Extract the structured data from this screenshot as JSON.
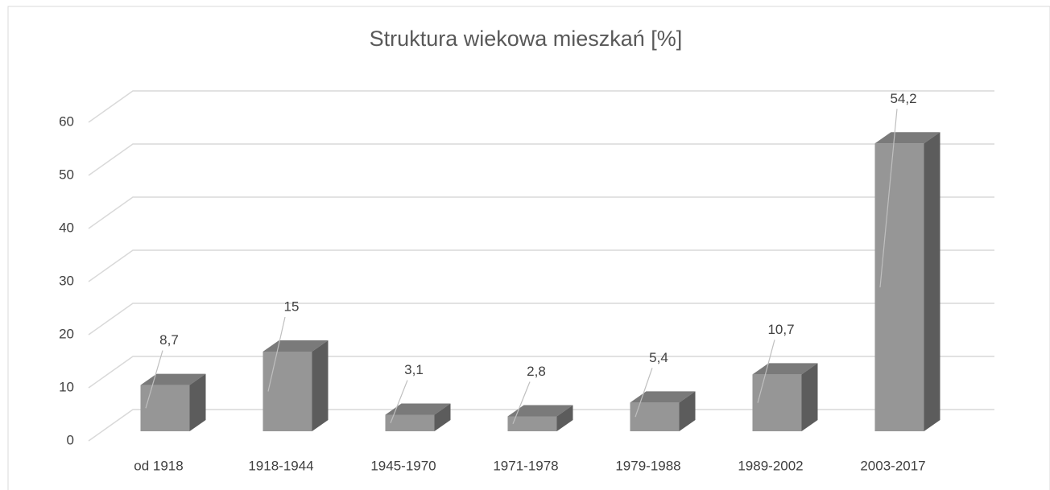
{
  "chart_data": {
    "type": "bar3d",
    "title": "Struktura wiekowa mieszkań [%]",
    "categories": [
      "od 1918",
      "1918-1944",
      "1945-1970",
      "1971-1978",
      "1979-1988",
      "1989-2002",
      "2003-2017"
    ],
    "values": [
      8.7,
      15,
      3.1,
      2.8,
      5.4,
      10.7,
      54.2
    ],
    "value_labels": [
      "8,7",
      "15",
      "3,1",
      "2,8",
      "5,4",
      "10,7",
      "54,2"
    ],
    "color": "#969696",
    "ylim": [
      0,
      60
    ],
    "yticks": [
      0,
      10,
      20,
      30,
      40,
      50,
      60
    ],
    "grid": true
  }
}
